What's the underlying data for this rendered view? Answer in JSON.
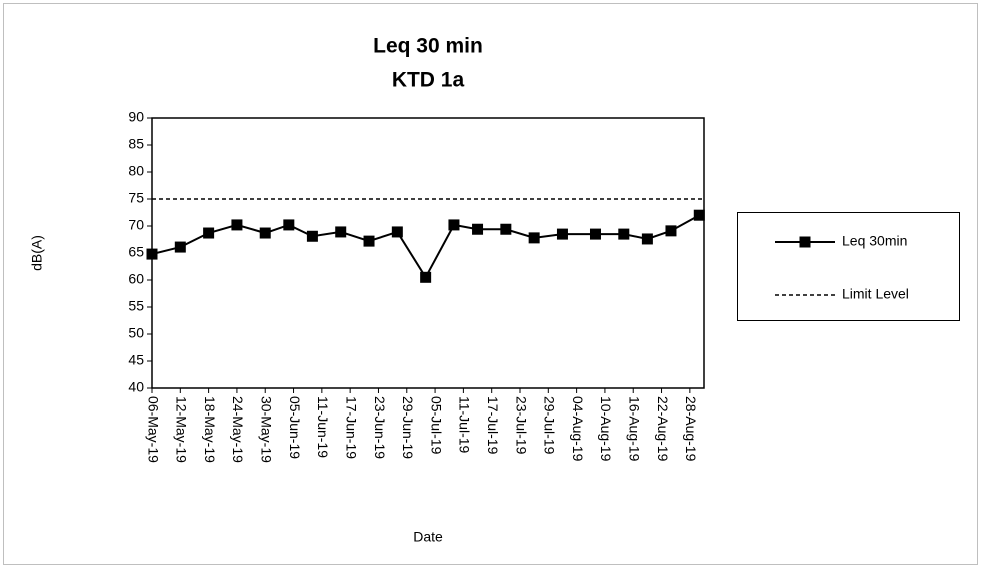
{
  "chart_data": {
    "type": "line",
    "title": "Leq 30 min",
    "subtitle": "KTD 1a",
    "x_label": "Date",
    "y_label": "dB(A)",
    "x": [
      43591,
      43597,
      43603,
      43609,
      43615,
      43620,
      43625,
      43631,
      43637,
      43643,
      43649,
      43655,
      43660,
      43666,
      43672,
      43678,
      43685,
      43691,
      43696,
      43701,
      43707
    ],
    "series": [
      {
        "name": "Leq 30min",
        "color": "#000000",
        "values": [
          64.8,
          66.1,
          68.7,
          70.2,
          68.7,
          70.2,
          68.1,
          68.9,
          67.2,
          68.9,
          60.5,
          70.2,
          69.4,
          69.4,
          67.8,
          68.5,
          68.5,
          68.5,
          67.6,
          69.1,
          72.0
        ]
      }
    ],
    "limit": {
      "name": "Limit Level",
      "value": 75,
      "color": "#000000"
    },
    "xlim": [
      43591,
      43708
    ],
    "xticks": [
      {
        "value": 43591,
        "label": "06-May-19"
      },
      {
        "value": 43597,
        "label": "12-May-19"
      },
      {
        "value": 43603,
        "label": "18-May-19"
      },
      {
        "value": 43609,
        "label": "24-May-19"
      },
      {
        "value": 43615,
        "label": "30-May-19"
      },
      {
        "value": 43621,
        "label": "05-Jun-19"
      },
      {
        "value": 43627,
        "label": "11-Jun-19"
      },
      {
        "value": 43633,
        "label": "17-Jun-19"
      },
      {
        "value": 43639,
        "label": "23-Jun-19"
      },
      {
        "value": 43645,
        "label": "29-Jun-19"
      },
      {
        "value": 43651,
        "label": "05-Jul-19"
      },
      {
        "value": 43657,
        "label": "11-Jul-19"
      },
      {
        "value": 43663,
        "label": "17-Jul-19"
      },
      {
        "value": 43669,
        "label": "23-Jul-19"
      },
      {
        "value": 43675,
        "label": "29-Jul-19"
      },
      {
        "value": 43681,
        "label": "04-Aug-19"
      },
      {
        "value": 43687,
        "label": "10-Aug-19"
      },
      {
        "value": 43693,
        "label": "16-Aug-19"
      },
      {
        "value": 43699,
        "label": "22-Aug-19"
      },
      {
        "value": 43705,
        "label": "28-Aug-19"
      }
    ],
    "ylim": [
      40,
      90
    ],
    "yticks": [
      40,
      45,
      50,
      55,
      60,
      65,
      70,
      75,
      80,
      85,
      90
    ],
    "grid": false,
    "legend": "right"
  }
}
